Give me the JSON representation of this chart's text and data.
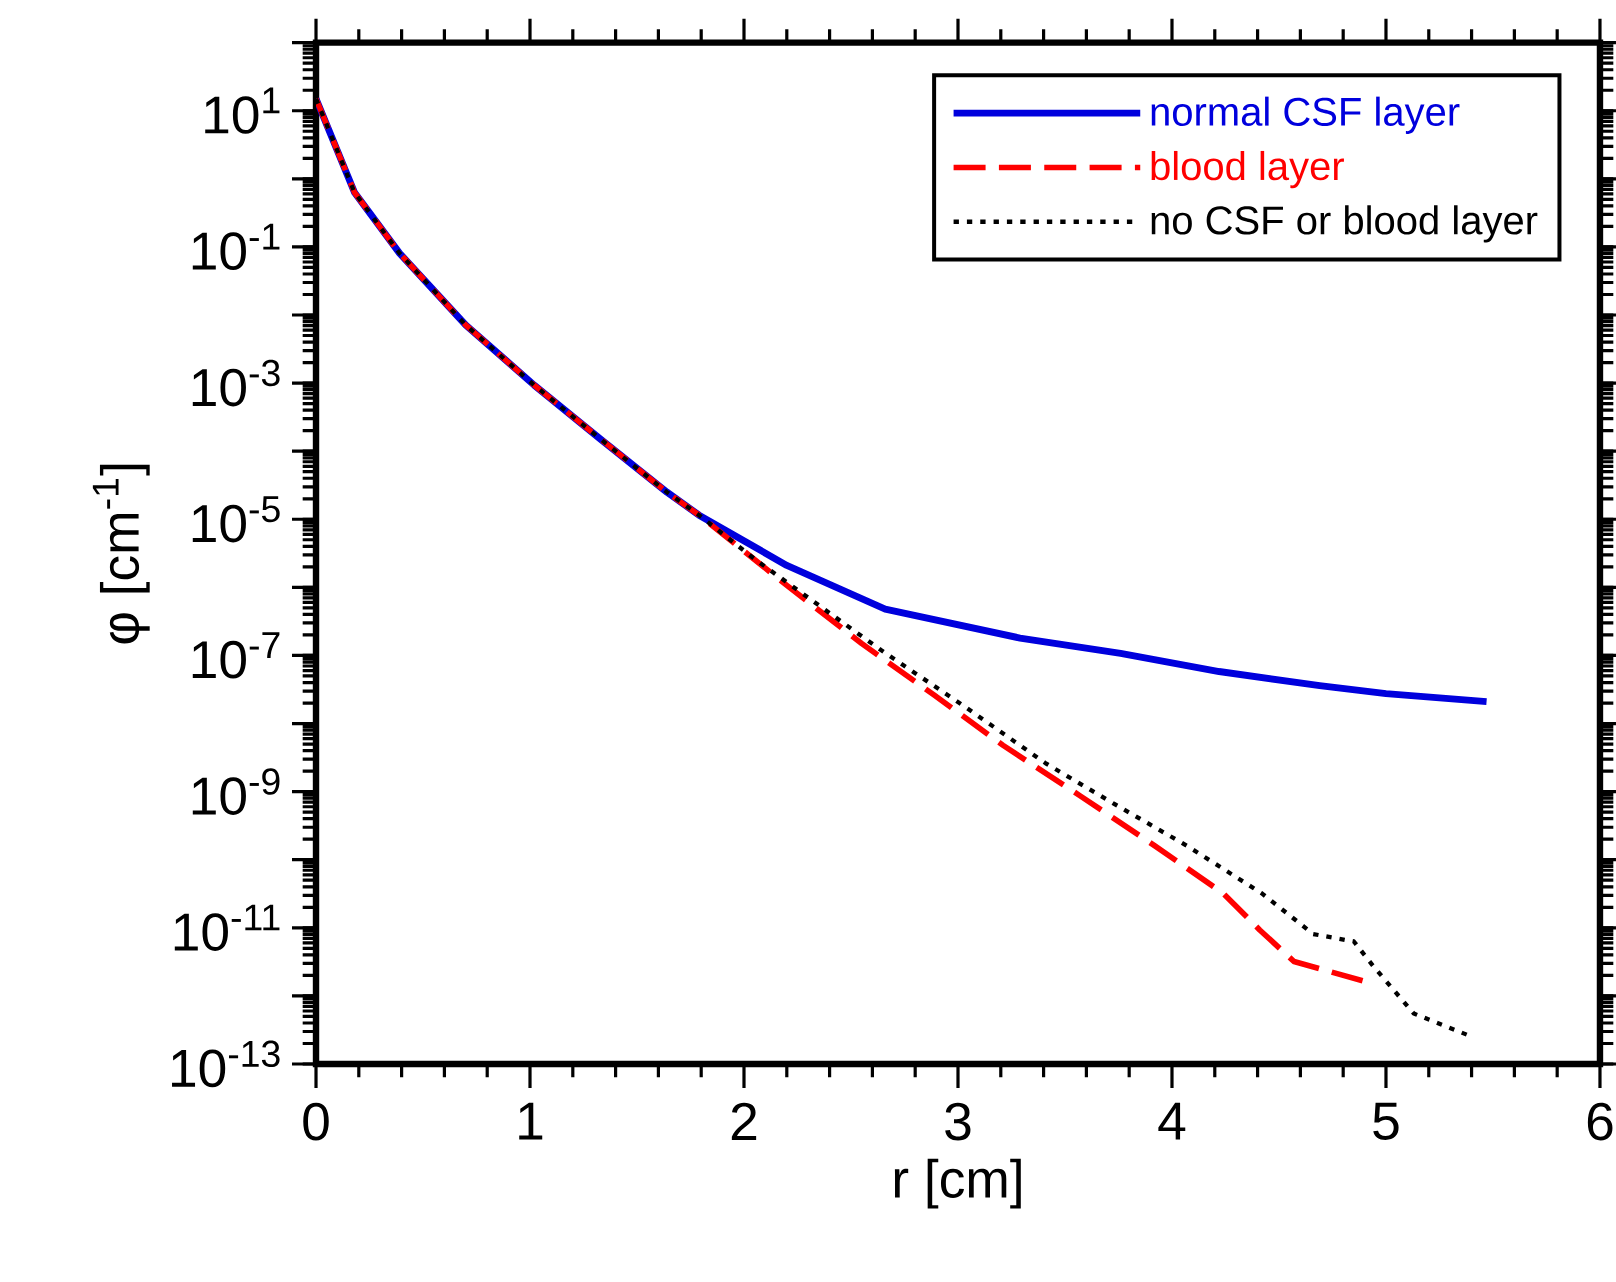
{
  "chart_data": {
    "type": "line",
    "xlabel": "r [cm]",
    "ylabel": "φ [cm$^{-1}$]",
    "xlim": [
      0,
      6
    ],
    "ylim": [
      1e-13,
      100
    ],
    "xticks": [
      0,
      1,
      2,
      3,
      4,
      5,
      6
    ],
    "yticks": [
      {
        "value": 1e-13,
        "label": "10$^{-13}$"
      },
      {
        "value": 1e-12,
        "label": null
      },
      {
        "value": 1e-11,
        "label": "10$^{-11}$"
      },
      {
        "value": 1e-10,
        "label": null
      },
      {
        "value": 1e-09,
        "label": "10$^{-9}$"
      },
      {
        "value": 1e-08,
        "label": null
      },
      {
        "value": 1e-07,
        "label": "10$^{-7}$"
      },
      {
        "value": 1e-06,
        "label": null
      },
      {
        "value": 1e-05,
        "label": "10$^{-5}$"
      },
      {
        "value": 0.0001,
        "label": null
      },
      {
        "value": 0.001,
        "label": "10$^{-3}$"
      },
      {
        "value": 0.01,
        "label": null
      },
      {
        "value": 0.1,
        "label": "10$^{-1}$"
      },
      {
        "value": 1,
        "label": null
      },
      {
        "value": 10,
        "label": "10$^{1}$"
      },
      {
        "value": 100,
        "label": null
      }
    ],
    "log": "y",
    "legend": "top right",
    "series": [
      {
        "name": "normal CSF layer",
        "color": "#0000dd",
        "line_style": "solid",
        "x": [
          0,
          0.18,
          0.39,
          0.7,
          1.02,
          1.33,
          1.64,
          1.79,
          2.2,
          2.66,
          3.29,
          3.76,
          4.22,
          4.69,
          5.0,
          5.47
        ],
        "values": [
          15,
          0.63,
          0.081,
          0.0071,
          0.00093,
          0.00015,
          2.5e-05,
          1.15e-05,
          2.1e-06,
          4.8e-07,
          1.8e-07,
          1.07e-07,
          5.8e-08,
          3.6e-08,
          2.75e-08,
          2.1e-08
        ]
      },
      {
        "name": "blood layer",
        "color": "#ff0000",
        "line_style": "dashed",
        "x": [
          0,
          0.18,
          0.39,
          0.7,
          1.02,
          1.33,
          1.64,
          1.79,
          2.2,
          2.55,
          2.89,
          3.21,
          3.57,
          3.92,
          4.24,
          4.41,
          4.57,
          4.91
        ],
        "values": [
          15,
          0.63,
          0.081,
          0.0071,
          0.00093,
          0.00015,
          2.5e-05,
          1.15e-05,
          1.07e-06,
          1.5e-07,
          2.6e-08,
          4.8e-09,
          8.7e-10,
          1.6e-10,
          3.2e-11,
          9.3e-12,
          3.2e-12,
          1.6e-12
        ]
      },
      {
        "name": "no CSF or blood layer",
        "color": "#000000",
        "line_style": "dotted",
        "x": [
          0,
          0.18,
          0.39,
          0.7,
          1.02,
          1.33,
          1.64,
          1.79,
          2.05,
          2.64,
          3.04,
          3.41,
          3.73,
          4.07,
          4.42,
          4.66,
          4.85,
          4.94,
          5.13,
          5.39
        ],
        "values": [
          15,
          0.63,
          0.081,
          0.0071,
          0.00093,
          0.00015,
          2.5e-05,
          1.15e-05,
          2.6e-06,
          1.2e-07,
          1.7e-08,
          2.6e-09,
          6.6e-10,
          1.6e-10,
          3.2e-11,
          8.1e-12,
          6.3e-12,
          2.75e-12,
          5.5e-13,
          2.6e-13
        ]
      }
    ]
  }
}
